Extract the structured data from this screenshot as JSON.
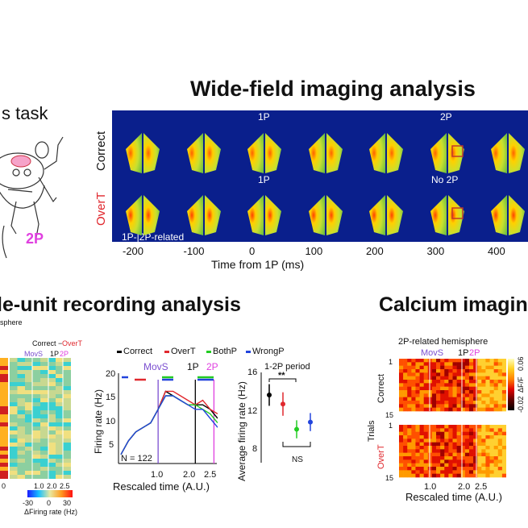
{
  "titles": {
    "widefield": "Wide-field imaging analysis",
    "singleunit": "le-unit recording analysis",
    "calcium": "Calcium imagin"
  },
  "task": {
    "label": "s task",
    "twoP": "2P"
  },
  "widefield": {
    "row_correct": "Correct",
    "row_overt": "OverT",
    "marker_1p_top": "1P",
    "marker_2p_top": "2P",
    "marker_1p_bottom": "1P",
    "marker_no2p": "No 2P",
    "overlay_label": "1P-|2P-related",
    "ticks": [
      "-200",
      "-100",
      "0",
      "100",
      "200",
      "300",
      "400"
    ],
    "xlabel": "Time from 1P (ms)",
    "colors": {
      "background": "#0a1f8c",
      "accent_box": "#c0392b"
    }
  },
  "heatmap_left": {
    "header": "sphere",
    "legend_correct": "Correct −",
    "legend_overt": "OverT",
    "movs": "MovS",
    "onep": "1P",
    "twop": "2P",
    "colorbar_ticks": [
      "-30",
      "0",
      "30"
    ],
    "colorbar_label": "ΔFiring rate (Hz)",
    "xticks": [
      "1.0",
      "2.0",
      "2.5"
    ],
    "xtick_left": "0"
  },
  "firing_plot": {
    "legend": [
      {
        "name": "Correct",
        "color": "#000000"
      },
      {
        "name": "OverT",
        "color": "#e0282e"
      },
      {
        "name": "BothP",
        "color": "#22cc22"
      },
      {
        "name": "WrongP",
        "color": "#2244dd"
      }
    ],
    "ylabel": "Firing rate (Hz)",
    "xlabel": "Rescaled time (A.U.)",
    "yticks": [
      "20",
      "15",
      "10",
      "5"
    ],
    "xticks": [
      "1.0",
      "2.0",
      "2.5"
    ],
    "n_label": "N = 122",
    "movs": "MovS",
    "onep": "1P",
    "twop": "2P"
  },
  "avg_plot": {
    "title": "1-2P period",
    "ylabel": "Average firing rate (Hz)",
    "yticks": [
      "16",
      "12",
      "8"
    ],
    "sig": "**",
    "ns": "NS"
  },
  "calcium_plot": {
    "header": "2P-related hemisphere",
    "movs": "MovS",
    "onep": "1P",
    "twop": "2P",
    "trials_label": "Trials",
    "row_correct": "Correct",
    "row_overt": "OverT",
    "ytick_top": "1",
    "ytick_15a": "15",
    "ytick_1b": "1",
    "ytick_15b": "15",
    "colorbar_top": "0.06",
    "colorbar_bottom": "-0.02",
    "colorbar_label": "ΔF/F",
    "xticks": [
      "1.0",
      "2.0",
      "2.5"
    ],
    "xlabel": "Rescaled time (A.U.)"
  },
  "chart_data": [
    {
      "type": "line",
      "xlabel": "Rescaled time (A.U.)",
      "ylabel": "Firing rate (Hz)",
      "xlim": [
        0,
        2.6
      ],
      "ylim": [
        0,
        20
      ],
      "series": [
        {
          "name": "Correct",
          "x": [
            0,
            0.2,
            0.4,
            0.6,
            0.8,
            1.0,
            1.2,
            1.4,
            1.6,
            1.8,
            2.0,
            2.2,
            2.4,
            2.6
          ],
          "y": [
            2,
            5,
            7,
            8,
            9,
            12,
            16,
            15,
            14,
            13,
            13,
            13,
            12,
            10
          ]
        },
        {
          "name": "OverT",
          "x": [
            0,
            0.2,
            0.4,
            0.6,
            0.8,
            1.0,
            1.2,
            1.4,
            1.6,
            1.8,
            2.0,
            2.2,
            2.4,
            2.6
          ],
          "y": [
            2,
            5,
            7,
            8,
            9,
            12,
            16,
            16,
            15,
            14,
            13,
            14,
            12,
            11
          ]
        },
        {
          "name": "BothP",
          "x": [
            0,
            0.2,
            0.4,
            0.6,
            0.8,
            1.0,
            1.2,
            1.4,
            1.6,
            1.8,
            2.0,
            2.2,
            2.4,
            2.6
          ],
          "y": [
            2,
            5,
            7,
            8,
            9,
            12,
            15,
            15,
            14,
            13,
            13,
            12,
            11,
            9
          ]
        },
        {
          "name": "WrongP",
          "x": [
            0,
            0.2,
            0.4,
            0.6,
            0.8,
            1.0,
            1.2,
            1.4,
            1.6,
            1.8,
            2.0,
            2.2,
            2.4,
            2.6
          ],
          "y": [
            2,
            5,
            7,
            8,
            9,
            12,
            15,
            15,
            14,
            13,
            12,
            12,
            10,
            8
          ]
        }
      ]
    },
    {
      "type": "scatter",
      "title": "1-2P period",
      "ylabel": "Average firing rate (Hz)",
      "ylim": [
        6,
        16
      ],
      "categories": [
        "Correct",
        "OverT",
        "BothP",
        "WrongP"
      ],
      "values": [
        13.5,
        12.5,
        9.7,
        10.5
      ],
      "errors": [
        1.2,
        1.3,
        1.0,
        1.0
      ]
    }
  ]
}
